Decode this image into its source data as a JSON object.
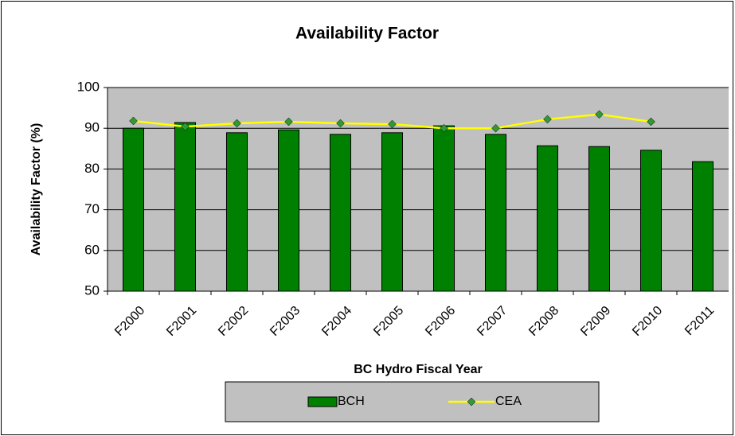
{
  "chart_data": {
    "type": "bar",
    "title": "Availability Factor",
    "x_label": "BC Hydro Fiscal Year",
    "y_label": "Availability Factor (%)",
    "categories": [
      "F2000",
      "F2001",
      "F2002",
      "F2003",
      "F2004",
      "F2005",
      "F2006",
      "F2007",
      "F2008",
      "F2009",
      "F2010",
      "F2011"
    ],
    "series": [
      {
        "name": "BCH",
        "type": "bar",
        "color": "#008000",
        "values": [
          90.0,
          91.4,
          88.9,
          89.6,
          88.5,
          88.9,
          90.6,
          88.5,
          85.7,
          85.5,
          84.6,
          81.8
        ]
      },
      {
        "name": "CEA",
        "type": "line",
        "color": "#ffff00",
        "marker_color": "#339933",
        "values": [
          91.8,
          90.4,
          91.2,
          91.6,
          91.2,
          91.0,
          90.0,
          90.0,
          92.2,
          93.4,
          91.6,
          null
        ]
      }
    ],
    "ylim": [
      50,
      100
    ],
    "yticks": [
      50,
      60,
      70,
      80,
      90,
      100
    ],
    "grid": true,
    "plot_background": "#c0c0c0",
    "legend": "bottom"
  }
}
